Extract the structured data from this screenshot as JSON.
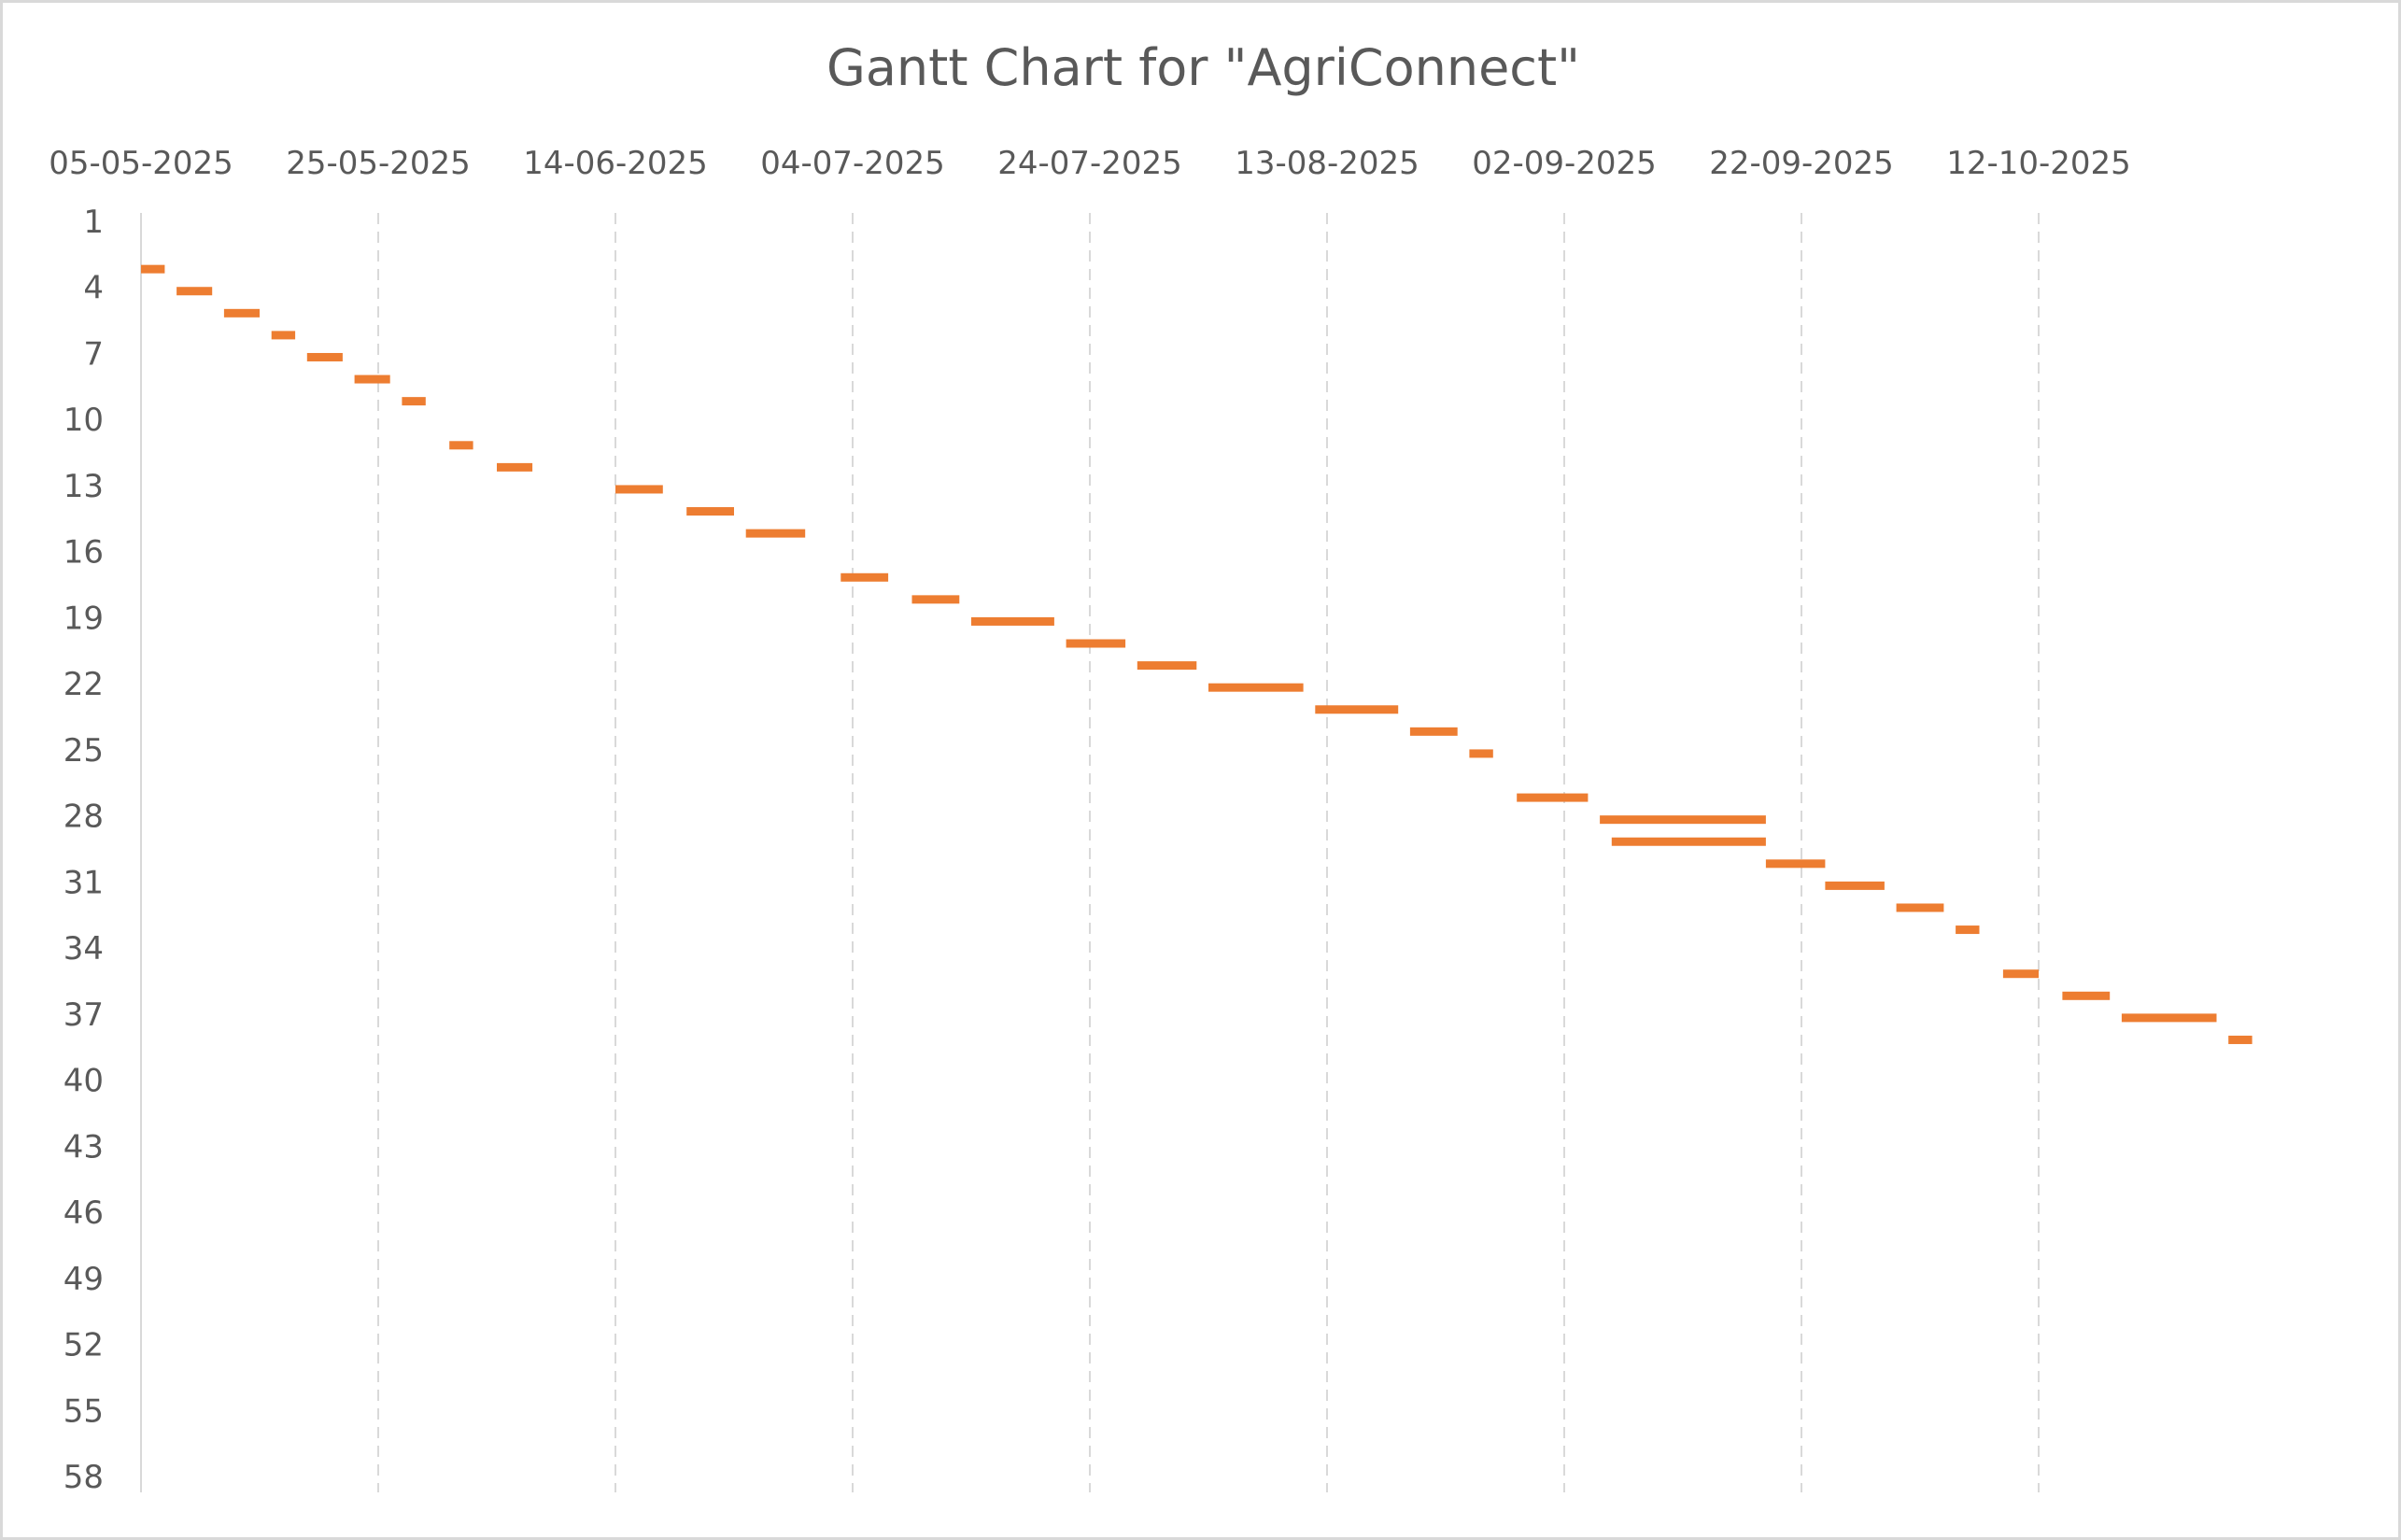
{
  "chart_data": {
    "type": "bar",
    "orientation": "horizontal",
    "title": "Gantt Chart for \"AgriConnect\"",
    "x_axis": {
      "type": "date",
      "position": "top",
      "range": [
        "05-05-2025",
        "31-10-2025"
      ],
      "tick_labels": [
        "05-05-2025",
        "25-05-2025",
        "14-06-2025",
        "04-07-2025",
        "24-07-2025",
        "13-08-2025",
        "02-09-2025",
        "22-09-2025",
        "12-10-2025"
      ],
      "gridlines": "dashed vertical",
      "gridline_color": "#d9d9d9"
    },
    "y_axis": {
      "range": [
        1,
        58
      ],
      "reversed": true,
      "tick_labels": [
        "1",
        "4",
        "7",
        "10",
        "13",
        "16",
        "19",
        "22",
        "25",
        "28",
        "31",
        "34",
        "37",
        "40",
        "43",
        "46",
        "49",
        "52",
        "55",
        "58"
      ]
    },
    "bar_color": "#ed7d31",
    "tasks": [
      {
        "row": 3,
        "start": "05-05-2025",
        "end": "07-05-2025"
      },
      {
        "row": 4,
        "start": "08-05-2025",
        "end": "11-05-2025"
      },
      {
        "row": 5,
        "start": "12-05-2025",
        "end": "15-05-2025"
      },
      {
        "row": 6,
        "start": "16-05-2025",
        "end": "18-05-2025"
      },
      {
        "row": 7,
        "start": "19-05-2025",
        "end": "22-05-2025"
      },
      {
        "row": 8,
        "start": "23-05-2025",
        "end": "26-05-2025"
      },
      {
        "row": 9,
        "start": "27-05-2025",
        "end": "29-05-2025"
      },
      {
        "row": 11,
        "start": "31-05-2025",
        "end": "02-06-2025"
      },
      {
        "row": 12,
        "start": "04-06-2025",
        "end": "07-06-2025"
      },
      {
        "row": 13,
        "start": "14-06-2025",
        "end": "18-06-2025"
      },
      {
        "row": 14,
        "start": "20-06-2025",
        "end": "24-06-2025"
      },
      {
        "row": 15,
        "start": "25-06-2025",
        "end": "30-06-2025"
      },
      {
        "row": 17,
        "start": "03-07-2025",
        "end": "07-07-2025"
      },
      {
        "row": 18,
        "start": "09-07-2025",
        "end": "13-07-2025"
      },
      {
        "row": 19,
        "start": "14-07-2025",
        "end": "21-07-2025"
      },
      {
        "row": 20,
        "start": "22-07-2025",
        "end": "27-07-2025"
      },
      {
        "row": 21,
        "start": "28-07-2025",
        "end": "02-08-2025"
      },
      {
        "row": 22,
        "start": "03-08-2025",
        "end": "11-08-2025"
      },
      {
        "row": 23,
        "start": "12-08-2025",
        "end": "19-08-2025"
      },
      {
        "row": 24,
        "start": "20-08-2025",
        "end": "24-08-2025"
      },
      {
        "row": 25,
        "start": "25-08-2025",
        "end": "27-08-2025"
      },
      {
        "row": 27,
        "start": "29-08-2025",
        "end": "04-09-2025"
      },
      {
        "row": 28,
        "start": "05-09-2025",
        "end": "19-09-2025"
      },
      {
        "row": 29,
        "start": "06-09-2025",
        "end": "19-09-2025"
      },
      {
        "row": 30,
        "start": "19-09-2025",
        "end": "24-09-2025"
      },
      {
        "row": 31,
        "start": "24-09-2025",
        "end": "29-09-2025"
      },
      {
        "row": 32,
        "start": "30-09-2025",
        "end": "04-10-2025"
      },
      {
        "row": 33,
        "start": "05-10-2025",
        "end": "07-10-2025"
      },
      {
        "row": 35,
        "start": "09-10-2025",
        "end": "12-10-2025"
      },
      {
        "row": 36,
        "start": "14-10-2025",
        "end": "18-10-2025"
      },
      {
        "row": 37,
        "start": "19-10-2025",
        "end": "27-10-2025"
      },
      {
        "row": 38,
        "start": "28-10-2025",
        "end": "30-10-2025"
      }
    ]
  }
}
